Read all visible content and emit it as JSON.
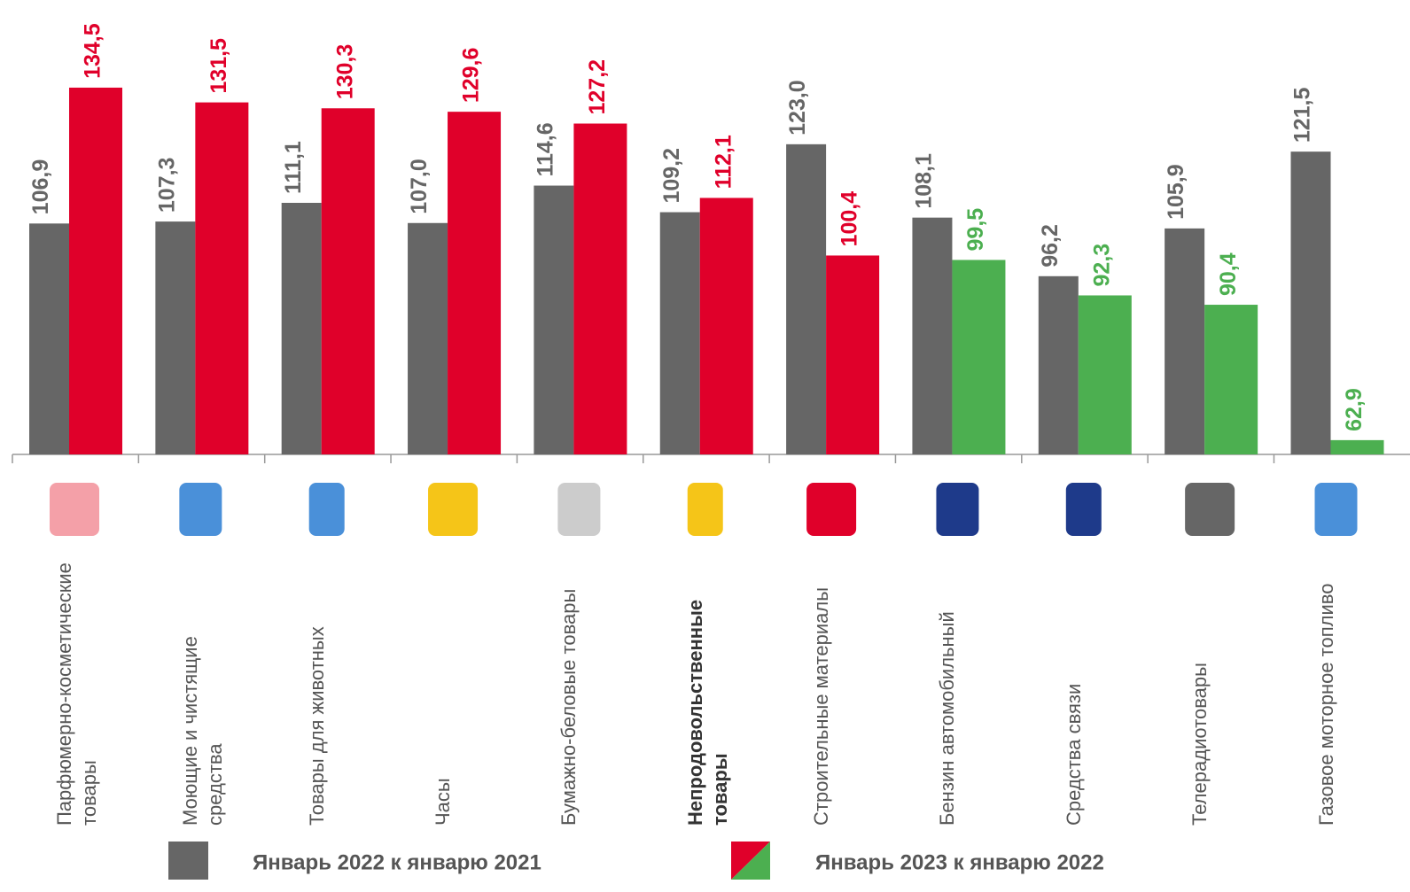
{
  "chart_data": {
    "type": "bar",
    "categories": [
      "Парфюмерно-косметические товары",
      "Моющие и чистящие средства",
      "Товары для животных",
      "Часы",
      "Бумажно-беловые товары",
      "Непродовольственные товары",
      "Строительные материалы",
      "Бензин автомобильный",
      "Средства связи",
      "Телерадиотовары",
      "Газовое моторное топливо"
    ],
    "highlight_category": 5,
    "series": [
      {
        "name": "Январь 2022 к январю 2021",
        "color": "#666666",
        "values": [
          106.9,
          107.3,
          111.1,
          107.0,
          114.6,
          109.2,
          123.0,
          108.1,
          96.2,
          105.9,
          121.5
        ],
        "value_labels": [
          "106,9",
          "107,3",
          "111,1",
          "107,0",
          "114,6",
          "109,2",
          "123,0",
          "108,1",
          "96,2",
          "105,9",
          "121,5"
        ]
      },
      {
        "name": "Январь 2023 к январю 2022",
        "colors": [
          "#e0002a",
          "#e0002a",
          "#e0002a",
          "#e0002a",
          "#e0002a",
          "#e0002a",
          "#e0002a",
          "#4caf50",
          "#4caf50",
          "#4caf50",
          "#4caf50"
        ],
        "values": [
          134.5,
          131.5,
          130.3,
          129.6,
          127.2,
          112.1,
          100.4,
          99.5,
          92.3,
          90.4,
          62.9
        ],
        "value_labels": [
          "134,5",
          "131,5",
          "130,3",
          "129,6",
          "127,2",
          "112,1",
          "100,4",
          "99,5",
          "92,3",
          "90,4",
          "62,9"
        ]
      }
    ],
    "ylim": [
      60,
      152.3
    ]
  }
}
